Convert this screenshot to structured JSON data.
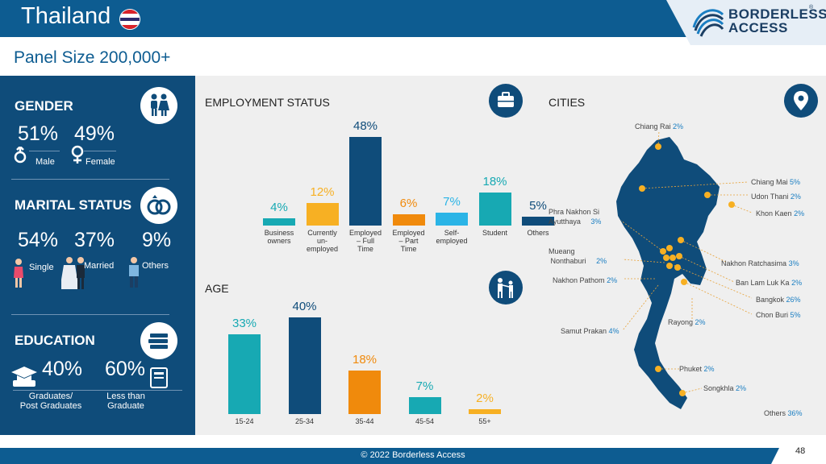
{
  "header": {
    "title": "Thailand",
    "logo_line1": "BORDERLESS",
    "logo_line2": "ACCESS",
    "logo_reg": "®"
  },
  "panel_size": "Panel Size 200,000+",
  "gender": {
    "title": "GENDER",
    "male_pct": "51%",
    "male_label": "Male",
    "female_pct": "49%",
    "female_label": "Female"
  },
  "marital": {
    "title": "MARITAL STATUS",
    "items": [
      {
        "pct": "54%",
        "label": "Single"
      },
      {
        "pct": "37%",
        "label": "Married"
      },
      {
        "pct": "9%",
        "label": "Others"
      }
    ]
  },
  "education": {
    "title": "EDUCATION",
    "items": [
      {
        "pct": "40%",
        "label_line1": "Graduates/",
        "label_line2": "Post Graduates"
      },
      {
        "pct": "60%",
        "label_line1": "Less than",
        "label_line2": "Graduate"
      }
    ]
  },
  "employment": {
    "title": "EMPLOYMENT STATUS",
    "bars": [
      {
        "value": 4,
        "label": "4%",
        "category": [
          "Business",
          "owners"
        ],
        "color": "#17a9b3"
      },
      {
        "value": 12,
        "label": "12%",
        "category": [
          "Currently",
          "un-",
          "employed"
        ],
        "color": "#f7b023"
      },
      {
        "value": 48,
        "label": "48%",
        "category": [
          "Employed",
          "– Full",
          "Time"
        ],
        "color": "#0f4c7a"
      },
      {
        "value": 6,
        "label": "6%",
        "category": [
          "Employed",
          "– Part",
          "Time"
        ],
        "color": "#f08a0c"
      },
      {
        "value": 7,
        "label": "7%",
        "category": [
          "Self-",
          "employed"
        ],
        "color": "#2bb4e6"
      },
      {
        "value": 18,
        "label": "18%",
        "category": [
          "Student"
        ],
        "color": "#17a9b3"
      },
      {
        "value": 5,
        "label": "5%",
        "category": [
          "Others"
        ],
        "color": "#0f4c7a"
      }
    ]
  },
  "age": {
    "title": "AGE",
    "bars": [
      {
        "value": 33,
        "label": "33%",
        "category": "15-24",
        "color": "#17a9b3"
      },
      {
        "value": 40,
        "label": "40%",
        "category": "25-34",
        "color": "#0f4c7a"
      },
      {
        "value": 18,
        "label": "18%",
        "category": "35-44",
        "color": "#f08a0c"
      },
      {
        "value": 7,
        "label": "7%",
        "category": "45-54",
        "color": "#17a9b3"
      },
      {
        "value": 2,
        "label": "2%",
        "category": "55+",
        "color": "#f7b023"
      }
    ]
  },
  "cities": {
    "title": "CITIES",
    "list": [
      {
        "name": "Chiang Rai",
        "pct": "2%"
      },
      {
        "name": "Chiang Mai",
        "pct": "5%"
      },
      {
        "name": "Udon Thani",
        "pct": "2%"
      },
      {
        "name": "Khon Kaen",
        "pct": "2%"
      },
      {
        "name": "Phra Nakhon Si",
        "name2": "Ayutthaya",
        "pct": "3%"
      },
      {
        "name": "Mueang",
        "name2": "Nonthaburi",
        "pct": "2%"
      },
      {
        "name": "Nakhon Ratchasima",
        "pct": "3%"
      },
      {
        "name": "Nakhon Pathom",
        "pct": "2%"
      },
      {
        "name": "Ban Lam Luk Ka",
        "pct": "2%"
      },
      {
        "name": "Bangkok",
        "pct": "26%"
      },
      {
        "name": "Chon Buri",
        "pct": "5%"
      },
      {
        "name": "Rayong",
        "pct": "2%"
      },
      {
        "name": "Samut Prakan",
        "pct": "4%"
      },
      {
        "name": "Phuket",
        "pct": "2%"
      },
      {
        "name": "Songkhla",
        "pct": "2%"
      },
      {
        "name": "Others",
        "pct": "36%"
      }
    ]
  },
  "chart_data": [
    {
      "type": "bar",
      "title": "EMPLOYMENT STATUS",
      "categories": [
        "Business owners",
        "Currently un-employed",
        "Employed – Full Time",
        "Employed – Part Time",
        "Self-employed",
        "Student",
        "Others"
      ],
      "values": [
        4,
        12,
        48,
        6,
        7,
        18,
        5
      ]
    },
    {
      "type": "bar",
      "title": "AGE",
      "categories": [
        "15-24",
        "25-34",
        "35-44",
        "45-54",
        "55+"
      ],
      "values": [
        33,
        40,
        18,
        7,
        2
      ]
    }
  ],
  "footer": {
    "copyright": "© 2022 Borderless Access",
    "page": "48"
  }
}
